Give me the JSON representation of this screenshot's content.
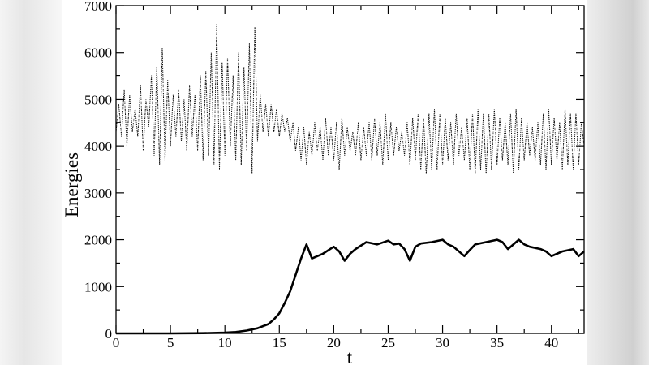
{
  "chart_data": {
    "type": "line",
    "xlabel": "t",
    "ylabel": "Energies",
    "xlim": [
      0,
      43
    ],
    "ylim": [
      0,
      7000
    ],
    "xticks": [
      0,
      5,
      10,
      15,
      20,
      25,
      30,
      35,
      40
    ],
    "yticks": [
      0,
      1000,
      2000,
      3000,
      4000,
      5000,
      6000,
      7000
    ],
    "grid": false,
    "series": [
      {
        "style": "dotted",
        "x_start": 0,
        "x_step": 0.25,
        "values": [
          4300,
          4900,
          4200,
          5200,
          4000,
          5100,
          4300,
          4800,
          4200,
          5300,
          3900,
          5000,
          4400,
          5500,
          3800,
          5700,
          3600,
          6100,
          3700,
          5400,
          4000,
          5100,
          4200,
          5200,
          4100,
          5000,
          3900,
          5300,
          4200,
          5100,
          3900,
          5500,
          3700,
          5600,
          3800,
          6000,
          3600,
          6600,
          3500,
          5800,
          3800,
          5900,
          4000,
          5500,
          3700,
          6000,
          3600,
          5700,
          3900,
          6200,
          3400,
          6550,
          4100,
          5100,
          4300,
          4900,
          4200,
          4900,
          4300,
          4800,
          4200,
          4700,
          4300,
          4600,
          4100,
          4500,
          3900,
          4400,
          3700,
          4400,
          3600,
          4300,
          3800,
          4500,
          3900,
          4400,
          3700,
          4600,
          3800,
          4400,
          3700,
          4500,
          3500,
          4600,
          3800,
          4400,
          3900,
          4300,
          3800,
          4500,
          3700,
          4400,
          3800,
          4500,
          3700,
          4600,
          3800,
          4500,
          3600,
          4700,
          3700,
          4500,
          3800,
          4400,
          3900,
          4300,
          3800,
          4500,
          3600,
          4600,
          3700,
          4700,
          3500,
          4600,
          3400,
          4700,
          3500,
          4800,
          3500,
          4700,
          3600,
          4600,
          3700,
          4500,
          3600,
          4700,
          3800,
          4400,
          3700,
          4600,
          3500,
          4700,
          3400,
          4800,
          3500,
          4700,
          3400,
          4700,
          3500,
          4800,
          3600,
          4600,
          3700,
          4500,
          3600,
          4700,
          3400,
          4800,
          3500,
          4600,
          3700,
          4500,
          3800,
          4400,
          3700,
          4500,
          3600,
          4700,
          3500,
          4800,
          3600,
          4600,
          3700,
          4500,
          3500,
          4800,
          3600,
          4700,
          3500,
          4700,
          3600,
          4500,
          4000
        ]
      },
      {
        "style": "solid",
        "x": [
          0,
          5,
          8,
          10,
          11,
          12,
          13,
          14,
          14.5,
          15,
          15.5,
          16,
          16.5,
          17,
          17.5,
          18,
          18.5,
          19,
          20,
          20.5,
          21,
          21.5,
          22,
          23,
          24,
          25,
          25.5,
          26,
          26.5,
          27,
          27.5,
          28,
          29,
          30,
          30.5,
          31,
          32,
          32.5,
          33,
          34,
          35,
          35.5,
          36,
          37,
          37.5,
          38,
          39,
          39.5,
          40,
          41,
          42,
          42.5,
          43
        ],
        "y": [
          0,
          0,
          5,
          15,
          30,
          60,
          110,
          200,
          300,
          430,
          650,
          900,
          1250,
          1600,
          1900,
          1600,
          1650,
          1700,
          1850,
          1750,
          1550,
          1700,
          1800,
          1950,
          1900,
          1980,
          1900,
          1920,
          1800,
          1550,
          1850,
          1920,
          1950,
          2000,
          1900,
          1850,
          1650,
          1780,
          1900,
          1950,
          2000,
          1950,
          1800,
          2000,
          1900,
          1850,
          1800,
          1750,
          1650,
          1750,
          1800,
          1650,
          1750
        ]
      }
    ]
  }
}
